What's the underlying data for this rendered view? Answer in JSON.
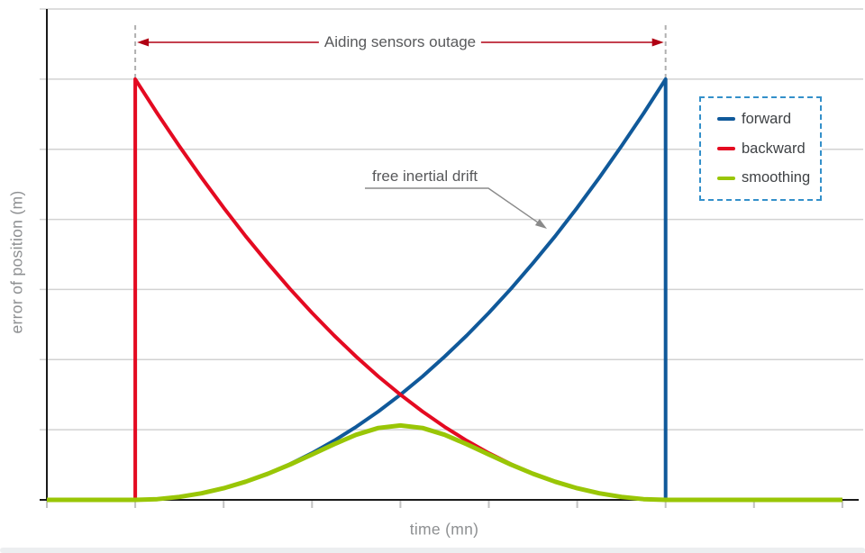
{
  "window": {
    "background": "#ffffff",
    "bottom_bar_color": "#eceef0"
  },
  "chart_data": {
    "type": "line",
    "title": "",
    "xlabel": "time (mn)",
    "ylabel": "error of position (m)",
    "xlim": [
      0,
      9.2
    ],
    "ylim": [
      0,
      7
    ],
    "x_ticks": [
      0,
      1,
      2,
      3,
      4,
      5,
      6,
      7,
      8,
      9
    ],
    "y_gridlines": [
      1,
      2,
      3,
      4,
      5,
      6,
      7
    ],
    "grid": "horizontal-only",
    "axis_tick_labels_shown": false,
    "legend": {
      "position": "upper-right",
      "style": "dashed-blue-box",
      "border_color": "#3490ca",
      "items": [
        "forward",
        "backward",
        "smoothing"
      ]
    },
    "outage_span": {
      "t_start": 1,
      "t_end": 7,
      "label": "Aiding sensors outage",
      "arrow_color": "#b00013",
      "boundary_style": "dashed-gray-vertical"
    },
    "annotations": [
      {
        "text": "free inertial drift",
        "target_series": "forward",
        "target_point": [
          5.65,
          3.8
        ],
        "leader_color": "#8a8a8a"
      }
    ],
    "series": [
      {
        "name": "forward",
        "color": "#10599a",
        "width": 4,
        "points": [
          [
            0,
            0
          ],
          [
            1,
            0
          ],
          [
            1.25,
            0.01
          ],
          [
            1.5,
            0.042
          ],
          [
            1.75,
            0.094
          ],
          [
            2,
            0.167
          ],
          [
            2.25,
            0.26
          ],
          [
            2.5,
            0.375
          ],
          [
            2.75,
            0.51
          ],
          [
            3,
            0.667
          ],
          [
            3.25,
            0.844
          ],
          [
            3.5,
            1.042
          ],
          [
            3.75,
            1.26
          ],
          [
            4,
            1.5
          ],
          [
            4.25,
            1.76
          ],
          [
            4.5,
            2.042
          ],
          [
            4.75,
            2.344
          ],
          [
            5,
            2.667
          ],
          [
            5.25,
            3.01
          ],
          [
            5.5,
            3.375
          ],
          [
            5.75,
            3.76
          ],
          [
            6,
            4.167
          ],
          [
            6.25,
            4.594
          ],
          [
            6.5,
            5.042
          ],
          [
            6.75,
            5.51
          ],
          [
            7,
            6
          ],
          [
            7,
            0
          ],
          [
            9,
            0
          ]
        ]
      },
      {
        "name": "backward",
        "color": "#e40a21",
        "width": 4,
        "points": [
          [
            0,
            0
          ],
          [
            1,
            0
          ],
          [
            1,
            6
          ],
          [
            1.25,
            5.51
          ],
          [
            1.5,
            5.042
          ],
          [
            1.75,
            4.594
          ],
          [
            2,
            4.167
          ],
          [
            2.25,
            3.76
          ],
          [
            2.5,
            3.375
          ],
          [
            2.75,
            3.01
          ],
          [
            3,
            2.667
          ],
          [
            3.25,
            2.344
          ],
          [
            3.5,
            2.042
          ],
          [
            3.75,
            1.76
          ],
          [
            4,
            1.5
          ],
          [
            4.25,
            1.26
          ],
          [
            4.5,
            1.042
          ],
          [
            4.75,
            0.844
          ],
          [
            5,
            0.667
          ],
          [
            5.25,
            0.51
          ],
          [
            5.5,
            0.375
          ],
          [
            5.75,
            0.26
          ],
          [
            6,
            0.167
          ],
          [
            6.25,
            0.094
          ],
          [
            6.5,
            0.042
          ],
          [
            6.75,
            0.01
          ],
          [
            7,
            0
          ],
          [
            9,
            0
          ]
        ]
      },
      {
        "name": "smoothing",
        "color": "#99c606",
        "width": 5,
        "points": [
          [
            0,
            0
          ],
          [
            1,
            0
          ],
          [
            1.25,
            0.01
          ],
          [
            1.5,
            0.042
          ],
          [
            1.75,
            0.094
          ],
          [
            2,
            0.166
          ],
          [
            2.25,
            0.26
          ],
          [
            2.5,
            0.373
          ],
          [
            2.75,
            0.503
          ],
          [
            3,
            0.647
          ],
          [
            3.25,
            0.794
          ],
          [
            3.5,
            0.928
          ],
          [
            3.75,
            1.025
          ],
          [
            4,
            1.061
          ],
          [
            4.25,
            1.025
          ],
          [
            4.5,
            0.928
          ],
          [
            4.75,
            0.794
          ],
          [
            5,
            0.647
          ],
          [
            5.25,
            0.503
          ],
          [
            5.5,
            0.373
          ],
          [
            5.75,
            0.26
          ],
          [
            6,
            0.166
          ],
          [
            6.25,
            0.094
          ],
          [
            6.5,
            0.042
          ],
          [
            6.75,
            0.01
          ],
          [
            7,
            0
          ],
          [
            9,
            0
          ]
        ]
      }
    ]
  }
}
